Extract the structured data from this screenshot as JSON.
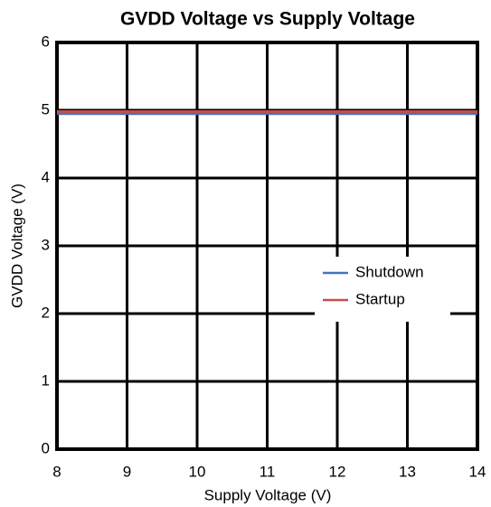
{
  "chart_data": {
    "type": "line",
    "title": "GVDD Voltage vs Supply Voltage",
    "x_label": "Supply Voltage (V)",
    "y_label": "GVDD Voltage (V)",
    "x": [
      8,
      9,
      10,
      11,
      12,
      13,
      14
    ],
    "series": [
      {
        "name": "Shutdown",
        "color": "#4472c4",
        "values": [
          4.95,
          4.95,
          4.95,
          4.95,
          4.95,
          4.95,
          4.95
        ]
      },
      {
        "name": "Startup",
        "color": "#c0504d",
        "values": [
          4.98,
          4.98,
          4.98,
          4.98,
          4.98,
          4.98,
          4.98
        ]
      }
    ],
    "xlim": [
      8,
      14
    ],
    "xticks": [
      8,
      9,
      10,
      11,
      12,
      13,
      14
    ],
    "ylim": [
      0,
      6
    ],
    "yticks": [
      0,
      1,
      2,
      3,
      4,
      5,
      6
    ],
    "grid": true
  }
}
